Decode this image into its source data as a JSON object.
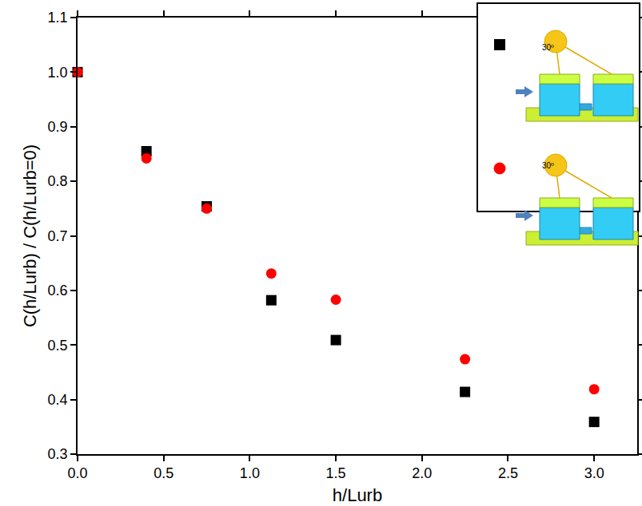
{
  "chart_data": {
    "type": "scatter",
    "x": [
      0,
      0.4,
      0.75,
      1.125,
      1.5,
      2.25,
      3
    ],
    "series": [
      {
        "color": "#000000",
        "marker": "square",
        "values": [
          1.0,
          0.855,
          0.754,
          0.582,
          0.509,
          0.414,
          0.359
        ]
      },
      {
        "color": "#ff0000",
        "marker": "circle",
        "values": [
          1.0,
          0.842,
          0.75,
          0.631,
          0.583,
          0.474,
          0.419
        ]
      }
    ],
    "x_label": "h/Lurb",
    "y_label": "C(h/Lurb) / C(h/Lurb=0)",
    "xlim": [
      0,
      3.25
    ],
    "ylim": [
      0.3,
      1.1
    ],
    "xticks": [
      {
        "value": 0,
        "label": "0.0"
      },
      0.5,
      {
        "value": 1,
        "label": "1.0"
      },
      1.5,
      {
        "value": 2,
        "label": "2.0"
      },
      2.5,
      {
        "value": 3,
        "label": "3.0"
      }
    ],
    "yticks": [
      0.3,
      0.4,
      0.5,
      0.6,
      0.7,
      0.8,
      0.9,
      {
        "value": 1,
        "label": "1.0"
      },
      1.1
    ],
    "grid": false,
    "annotations": [
      "30º",
      "30º"
    ]
  }
}
